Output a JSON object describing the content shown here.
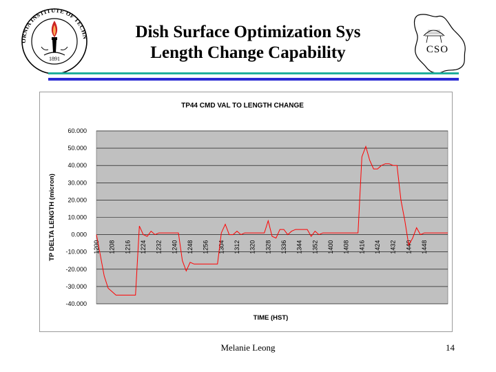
{
  "slide": {
    "title_line1": "Dish Surface Optimization Sys",
    "title_line2": "Length Change Capability",
    "footer_name": "Melanie Leong",
    "page_number": "14"
  },
  "logos": {
    "left": {
      "icon": "caltech-seal-icon",
      "text": "CALIFORNIA INSTITUTE OF TECHNOLOGY",
      "year": "1891"
    },
    "right": {
      "icon": "cso-island-logo-icon",
      "text": "CSO"
    }
  },
  "colors": {
    "rule_teal": "#1fae9c",
    "rule_blue": "#2b2bd4",
    "plot_bg": "#c0c0c0",
    "series": "#ff0000",
    "seal_red": "#cc2222"
  },
  "chart_data": {
    "type": "line",
    "title": "TP44 CMD VAL TO LENGTH CHANGE",
    "xlabel": "TIME (HST)",
    "ylabel": "TP DELTA LENGTH (micron)",
    "ylim": [
      -40,
      60
    ],
    "ytick_step": 10,
    "ytick_labels": [
      "60.000",
      "50.000",
      "40.000",
      "30.000",
      "20.000",
      "10.000",
      "0.000",
      "-10.000",
      "-20.000",
      "-30.000",
      "-40.000"
    ],
    "xtick_labels": [
      "1200",
      "1208",
      "1216",
      "1224",
      "1232",
      "1240",
      "1248",
      "1256",
      "1304",
      "1312",
      "1320",
      "1328",
      "1336",
      "1344",
      "1352",
      "1400",
      "1408",
      "1416",
      "1424",
      "1432",
      "1440",
      "1448"
    ],
    "x_minutes_per_tick": 8,
    "x_total_minutes": 180,
    "grid": true,
    "legend": "none",
    "series": [
      {
        "x": [
          0,
          2,
          4,
          6,
          8,
          10,
          12,
          14,
          16,
          18,
          20,
          22,
          24,
          26,
          28,
          30,
          32,
          34,
          36,
          38,
          40,
          42,
          44,
          46,
          48,
          50,
          52,
          54,
          56,
          58,
          60,
          62,
          64,
          66,
          68,
          70,
          72,
          74,
          76,
          78,
          80,
          82,
          84,
          86,
          88,
          90,
          92,
          94,
          96,
          98,
          100,
          102,
          104,
          106,
          108,
          110,
          112,
          114,
          116,
          118,
          120,
          122,
          124,
          126,
          128,
          130,
          132,
          134,
          136,
          138,
          140,
          142,
          144,
          146,
          148,
          150,
          152,
          154,
          156,
          158,
          160,
          162,
          164,
          166,
          168,
          170,
          172,
          174,
          176,
          178,
          180
        ],
        "values": [
          0,
          -12,
          -24,
          -31,
          -33,
          -35,
          -35,
          -35,
          -35,
          -35,
          -35,
          5,
          0,
          -1,
          2,
          0,
          1,
          1,
          1,
          1,
          1,
          1,
          -15,
          -21,
          -16,
          -17,
          -17,
          -17,
          -17,
          -17,
          -17,
          -17,
          1,
          6,
          0,
          0,
          2,
          0,
          1,
          1,
          1,
          1,
          1,
          1,
          8,
          -1,
          -2,
          3,
          3,
          0,
          2,
          3,
          3,
          3,
          3,
          -1,
          2,
          0,
          1,
          1,
          1,
          1,
          1,
          1,
          1,
          1,
          1,
          1,
          45,
          51,
          43,
          38,
          38,
          40,
          41,
          41,
          40,
          40,
          20,
          8,
          -6,
          -2,
          4,
          0,
          1,
          1,
          1,
          1,
          1,
          1,
          1
        ]
      }
    ]
  }
}
